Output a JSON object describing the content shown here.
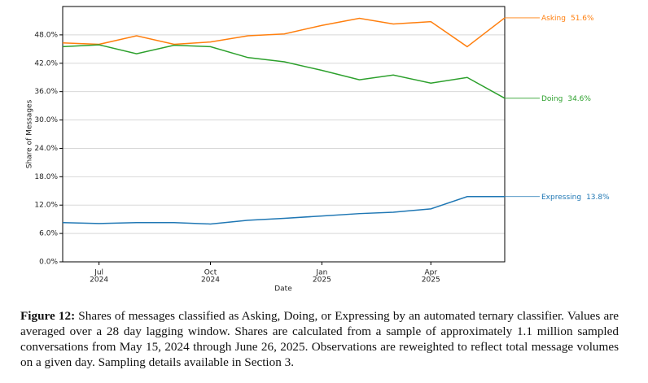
{
  "chart_data": {
    "type": "line",
    "x_label": "Date",
    "y_label": "Share of Messages",
    "x": [
      "2024-06",
      "2024-07",
      "2024-08",
      "2024-09",
      "2024-10",
      "2024-11",
      "2024-12",
      "2025-01",
      "2025-02",
      "2025-03",
      "2025-04",
      "2025-05",
      "2025-06"
    ],
    "xticks": [
      {
        "value": "2024-07",
        "label": "Jul",
        "sublabel": "2024"
      },
      {
        "value": "2024-10",
        "label": "Oct",
        "sublabel": "2024"
      },
      {
        "value": "2025-01",
        "label": "Jan",
        "sublabel": "2025"
      },
      {
        "value": "2025-04",
        "label": "Apr",
        "sublabel": "2025"
      }
    ],
    "ylim": [
      0,
      54
    ],
    "yticks": [
      {
        "value": 0,
        "label": "0.0%"
      },
      {
        "value": 6,
        "label": "6.0%"
      },
      {
        "value": 12,
        "label": "12.0%"
      },
      {
        "value": 18,
        "label": "18.0%"
      },
      {
        "value": 24,
        "label": "24.0%"
      },
      {
        "value": 30,
        "label": "30.0%"
      },
      {
        "value": 36,
        "label": "36.0%"
      },
      {
        "value": 42,
        "label": "42.0%"
      },
      {
        "value": 48,
        "label": "48.0%"
      }
    ],
    "grid": true,
    "series": [
      {
        "name": "Asking",
        "color": "#ff7f0e",
        "values": [
          46.3,
          46.0,
          47.8,
          46.0,
          46.5,
          47.8,
          48.2,
          50.0,
          51.5,
          50.3,
          50.8,
          45.5,
          51.6
        ],
        "value_labels": [
          null,
          null,
          null,
          null,
          null,
          null,
          null,
          null,
          null,
          null,
          null,
          null,
          "51.6%"
        ]
      },
      {
        "name": "Doing",
        "color": "#2ca02c",
        "values": [
          45.5,
          45.9,
          44.0,
          45.8,
          45.5,
          43.2,
          42.3,
          40.5,
          38.5,
          39.5,
          37.8,
          39.0,
          34.6
        ],
        "value_labels": [
          null,
          null,
          null,
          null,
          null,
          null,
          null,
          null,
          null,
          null,
          null,
          null,
          "34.6%"
        ]
      },
      {
        "name": "Expressing",
        "color": "#1f77b4",
        "values": [
          8.3,
          8.1,
          8.3,
          8.3,
          8.0,
          8.8,
          9.2,
          9.7,
          10.2,
          10.5,
          11.2,
          13.8,
          13.8
        ],
        "value_labels": [
          null,
          null,
          null,
          null,
          null,
          null,
          null,
          null,
          null,
          null,
          null,
          null,
          "13.8%"
        ]
      }
    ]
  },
  "caption": {
    "label": "Figure 12:",
    "text": "Shares of messages classified as Asking, Doing, or Expressing by an automated ternary classifier. Values are averaged over a 28 day lagging window. Shares are calculated from a sample of approximately 1.1 million sampled conversations from May 15, 2024 through June 26, 2025. Observations are reweighted to reflect total message volumes on a given day. Sampling details available in Section 3."
  }
}
